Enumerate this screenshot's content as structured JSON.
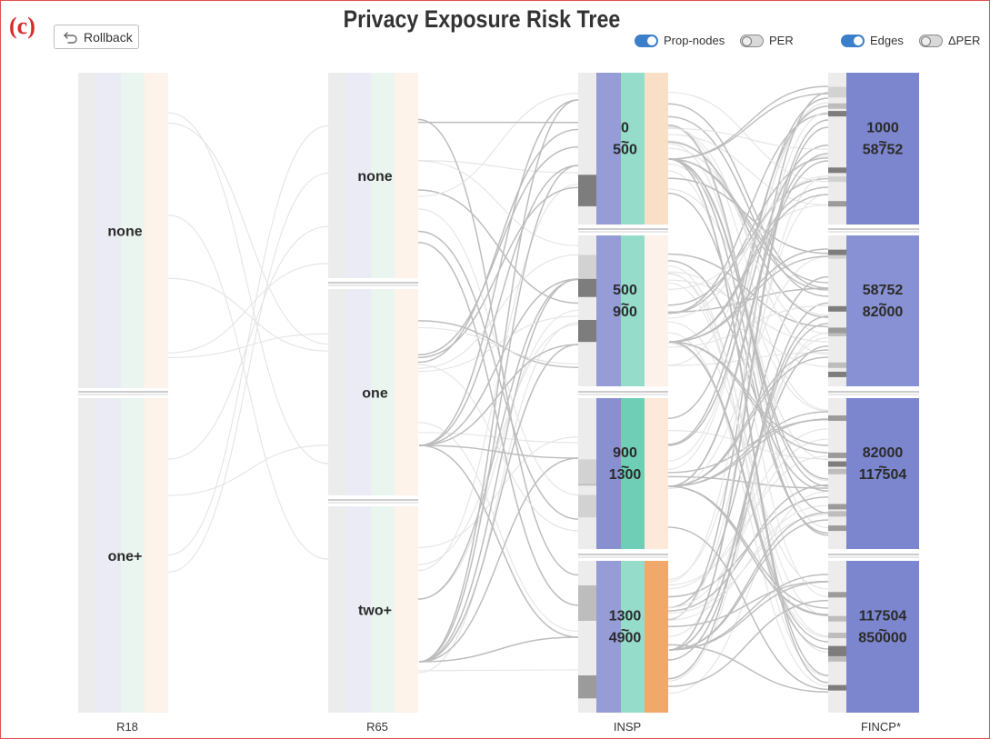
{
  "panel_label": "(c)",
  "title": "Privacy Exposure Risk Tree",
  "rollback": {
    "label": "Rollback",
    "icon": "undo-arrow-icon"
  },
  "toggles": [
    {
      "id": "prop-nodes",
      "label": "Prop-nodes",
      "on": true
    },
    {
      "id": "per",
      "label": "PER",
      "on": false
    },
    {
      "id": "edges",
      "label": "Edges",
      "on": true
    },
    {
      "id": "delta-per",
      "label": "ΔPER",
      "on": false
    }
  ],
  "colors": {
    "col_bg": [
      "#ececec",
      "#ebebf5",
      "#eaf5f0",
      "#fdf3ea"
    ],
    "edge_light": "#e4e4e4",
    "edge_dark": "#bdbdbd",
    "sep": "#9a9a9a"
  },
  "columns": [
    {
      "axis": "R18",
      "nodes": [
        {
          "label": "none",
          "lines": [
            "none"
          ],
          "bars": [
            "#ececec",
            "#ebebf5",
            "#eaf5f0",
            "#fdf3ea"
          ]
        },
        {
          "label": "one+",
          "lines": [
            "one+"
          ],
          "bars": [
            "#ececec",
            "#ebebf5",
            "#eaf5f0",
            "#fdf3ea"
          ]
        }
      ]
    },
    {
      "axis": "R65",
      "nodes": [
        {
          "label": "none",
          "lines": [
            "none"
          ],
          "bars": [
            "#ececec",
            "#ebebf5",
            "#eaf5f0",
            "#fdf3ea"
          ]
        },
        {
          "label": "one",
          "lines": [
            "one"
          ],
          "bars": [
            "#ececec",
            "#ebebf5",
            "#eaf5f0",
            "#fdf3ea"
          ]
        },
        {
          "label": "two+",
          "lines": [
            "two+"
          ],
          "bars": [
            "#ececec",
            "#ebebf5",
            "#eaf5f0",
            "#fdf3ea"
          ]
        }
      ]
    },
    {
      "axis": "INSP",
      "nodes": [
        {
          "label": "0 ~ 500",
          "lines": [
            "0",
            "500"
          ],
          "bars": [
            "#ececec",
            "#959cd6",
            "#96dccb",
            "#f9dfc6"
          ]
        },
        {
          "label": "500 ~ 900",
          "lines": [
            "500",
            "900"
          ],
          "bars": [
            "#ececec",
            "#959cd6",
            "#96dccb",
            "#fdf2ea"
          ]
        },
        {
          "label": "900 ~ 1300",
          "lines": [
            "900",
            "1300"
          ],
          "bars": [
            "#ececec",
            "#8990d0",
            "#6fceb6",
            "#fde9d9"
          ]
        },
        {
          "label": "1300 ~ 4900",
          "lines": [
            "1300",
            "4900"
          ],
          "bars": [
            "#ececec",
            "#959cd6",
            "#96dccb",
            "#f0a96b"
          ]
        }
      ]
    },
    {
      "axis": "FINCP*",
      "nodes": [
        {
          "label": "1000 ~ 58752",
          "lines": [
            "1000",
            "58752"
          ],
          "bars": [
            "#ececec",
            "#7b86cf"
          ]
        },
        {
          "label": "58752 ~ 82000",
          "lines": [
            "58752",
            "82000"
          ],
          "bars": [
            "#ececec",
            "#8891d4"
          ]
        },
        {
          "label": "82000 ~ 117504",
          "lines": [
            "82000",
            "117504"
          ],
          "bars": [
            "#ececec",
            "#7b86cf"
          ]
        },
        {
          "label": "117504 ~ 850000",
          "lines": [
            "117504",
            "850000"
          ],
          "bars": [
            "#ececec",
            "#7b86cf"
          ]
        }
      ]
    }
  ]
}
